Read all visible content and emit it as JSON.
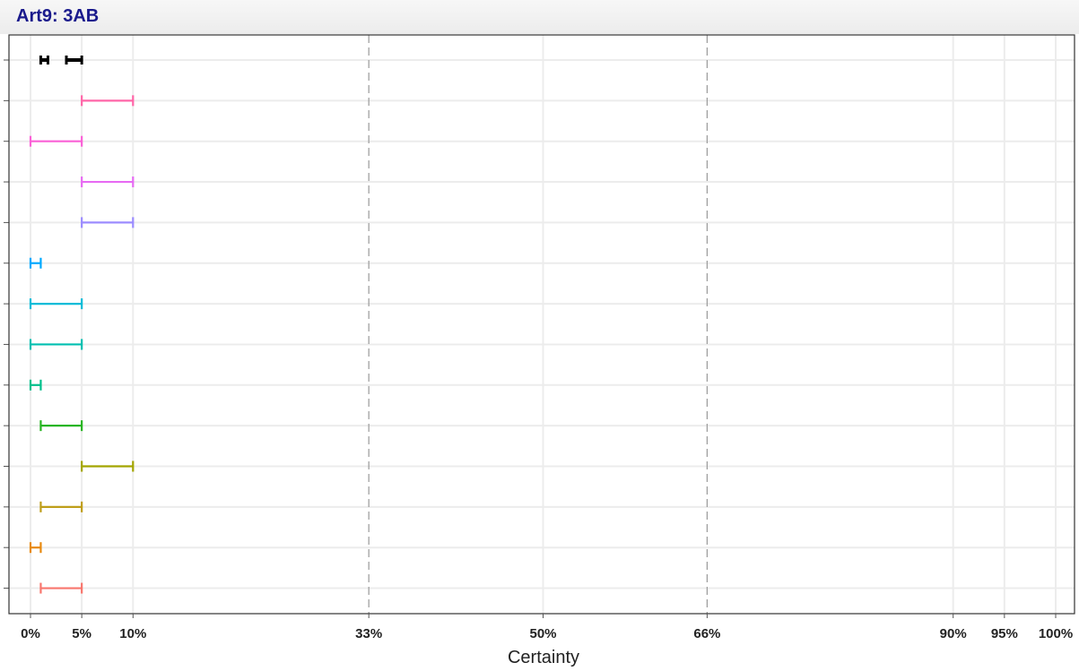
{
  "chart_data": {
    "type": "interval",
    "title": "Art9: 3AB",
    "xlabel": "Certainty",
    "ylabel": "",
    "xlim": [
      0,
      100
    ],
    "x_ticks": [
      {
        "value": 0,
        "label": "0%"
      },
      {
        "value": 5,
        "label": "5%"
      },
      {
        "value": 10,
        "label": "10%"
      },
      {
        "value": 33,
        "label": "33%"
      },
      {
        "value": 50,
        "label": "50%"
      },
      {
        "value": 66,
        "label": "66%"
      },
      {
        "value": 90,
        "label": "90%"
      },
      {
        "value": 95,
        "label": "95%"
      },
      {
        "value": 100,
        "label": "100%"
      }
    ],
    "reference_lines": [
      33,
      66
    ],
    "grid": true,
    "legend": "none",
    "summary_row": {
      "segments": [
        [
          1,
          1.7
        ],
        [
          3.5,
          5
        ]
      ],
      "color": "#000000"
    },
    "intervals": [
      {
        "low": 5,
        "high": 10,
        "color": "#ff66a8"
      },
      {
        "low": 0,
        "high": 5,
        "color": "#fb61d7"
      },
      {
        "low": 5,
        "high": 10,
        "color": "#e76bf3"
      },
      {
        "low": 5,
        "high": 10,
        "color": "#9c8cff"
      },
      {
        "low": 0,
        "high": 1,
        "color": "#00a9ff"
      },
      {
        "low": 0,
        "high": 5,
        "color": "#00bcd8"
      },
      {
        "low": 0,
        "high": 5,
        "color": "#00bfb0"
      },
      {
        "low": 0,
        "high": 1,
        "color": "#00c08b"
      },
      {
        "low": 1,
        "high": 5,
        "color": "#28b522"
      },
      {
        "low": 5,
        "high": 10,
        "color": "#a3a500"
      },
      {
        "low": 1,
        "high": 5,
        "color": "#bf9e1a"
      },
      {
        "low": 0,
        "high": 1,
        "color": "#e88a10"
      },
      {
        "low": 1,
        "high": 5,
        "color": "#f8766d"
      }
    ]
  }
}
